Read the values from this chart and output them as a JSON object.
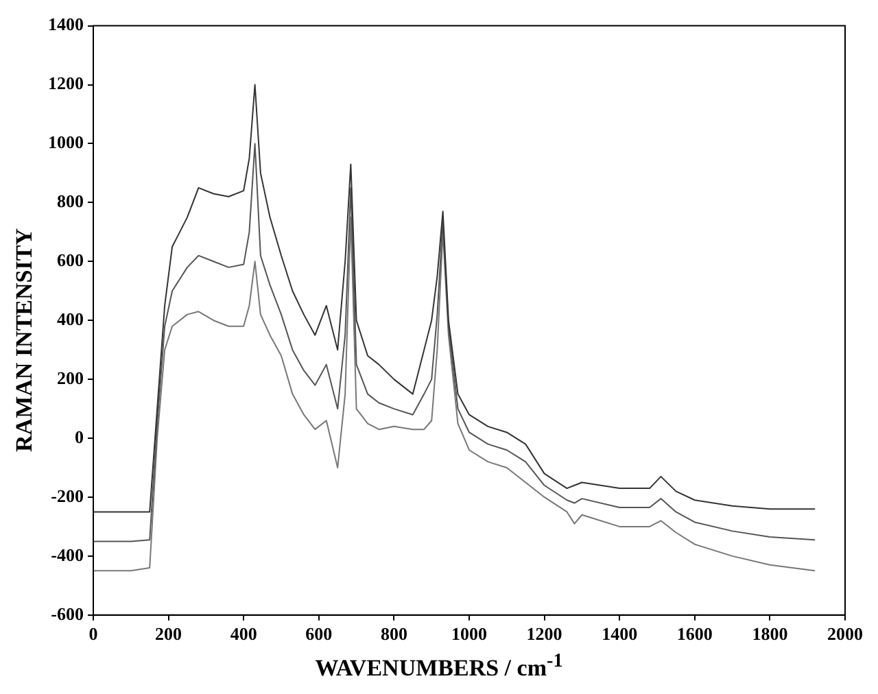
{
  "chart_data": {
    "type": "line",
    "xlabel": "WAVENUMBERS / cm$^{-1}$",
    "ylabel": "RAMAN INTENSITY",
    "x": [
      0,
      100,
      150,
      170,
      190,
      210,
      250,
      280,
      320,
      360,
      400,
      415,
      430,
      445,
      470,
      500,
      530,
      560,
      590,
      620,
      650,
      670,
      685,
      700,
      730,
      760,
      800,
      850,
      880,
      900,
      915,
      930,
      945,
      970,
      1000,
      1050,
      1100,
      1150,
      1200,
      1260,
      1280,
      1300,
      1400,
      1480,
      1510,
      1550,
      1600,
      1700,
      1800,
      1920
    ],
    "series": [
      {
        "color": "#333333",
        "values": [
          -250,
          -250,
          -250,
          100,
          450,
          650,
          750,
          850,
          830,
          820,
          840,
          950,
          1200,
          900,
          750,
          620,
          500,
          420,
          350,
          450,
          300,
          600,
          930,
          400,
          280,
          250,
          200,
          150,
          300,
          400,
          550,
          770,
          400,
          150,
          80,
          40,
          20,
          -20,
          -120,
          -170,
          -160,
          -150,
          -170,
          -170,
          -130,
          -180,
          -210,
          -230,
          -240,
          -240
        ]
      },
      {
        "color": "#555555",
        "values": [
          -350,
          -350,
          -345,
          50,
          380,
          500,
          580,
          620,
          600,
          580,
          590,
          700,
          1000,
          620,
          520,
          420,
          300,
          230,
          180,
          250,
          100,
          350,
          850,
          250,
          150,
          120,
          100,
          80,
          150,
          200,
          420,
          740,
          380,
          100,
          20,
          -20,
          -40,
          -80,
          -160,
          -210,
          -220,
          -205,
          -235,
          -235,
          -205,
          -250,
          -285,
          -315,
          -335,
          -345
        ]
      },
      {
        "color": "#777777",
        "values": [
          -450,
          -450,
          -440,
          0,
          300,
          380,
          420,
          430,
          400,
          380,
          380,
          450,
          600,
          420,
          350,
          280,
          150,
          80,
          30,
          60,
          -100,
          150,
          750,
          100,
          50,
          30,
          40,
          30,
          30,
          60,
          300,
          700,
          350,
          50,
          -40,
          -80,
          -100,
          -150,
          -200,
          -250,
          -290,
          -260,
          -300,
          -300,
          -280,
          -320,
          -360,
          -400,
          -430,
          -450
        ]
      }
    ],
    "xlim": [
      0,
      2000
    ],
    "xticks": [
      0,
      200,
      400,
      600,
      800,
      1000,
      1200,
      1400,
      1600,
      1800,
      2000
    ],
    "ylim": [
      -600,
      1400
    ],
    "yticks": [
      -600,
      -400,
      -200,
      0,
      200,
      400,
      600,
      800,
      1000,
      1200,
      1400
    ],
    "grid": false,
    "legend": false,
    "marker": "none",
    "line_style": "solid"
  }
}
